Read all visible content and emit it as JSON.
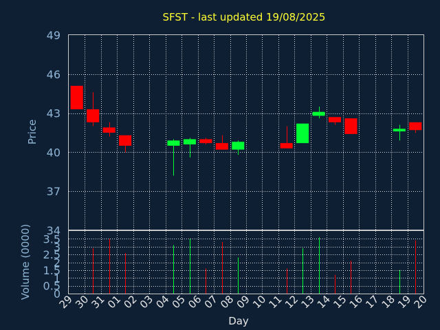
{
  "title": "SFST - last updated 19/08/2025",
  "colors": {
    "background": "#0e1f33",
    "up": "#00ff33",
    "down": "#ff0000",
    "title": "#ffff33",
    "axis_text": "#8fb4d4"
  },
  "chart_data": {
    "type": "candlestick",
    "title": "SFST - last updated 19/08/2025",
    "xlabel": "Day",
    "ylabel": "Price",
    "volume_label": "Volume (0000)",
    "days": [
      "29",
      "30",
      "31",
      "01",
      "02",
      "03",
      "04",
      "05",
      "06",
      "07",
      "08",
      "09",
      "10",
      "11",
      "12",
      "13",
      "14",
      "15",
      "16",
      "17",
      "18",
      "19",
      "20"
    ],
    "price_ylim": [
      34,
      49
    ],
    "price_ticks": [
      "49",
      "46",
      "43",
      "40",
      "37",
      "34"
    ],
    "volume_ylim": [
      0,
      4
    ],
    "volume_ticks": [
      "4",
      "3.5",
      "3",
      "2.5",
      "2",
      "1.5",
      "1",
      "0.5",
      "0"
    ],
    "grid": true,
    "candles": [
      {
        "day": "29",
        "open": 45.1,
        "close": 43.3,
        "high": 45.1,
        "low": 43.3,
        "volume": 0
      },
      {
        "day": "30",
        "open": 43.3,
        "close": 42.3,
        "high": 44.6,
        "low": 42.0,
        "volume": 2.9
      },
      {
        "day": "31",
        "open": 41.9,
        "close": 41.5,
        "high": 42.3,
        "low": 41.2,
        "volume": 3.5
      },
      {
        "day": "01",
        "open": 41.3,
        "close": 40.5,
        "high": 41.3,
        "low": 40.0,
        "volume": 2.6
      },
      {
        "day": "04",
        "open": 40.5,
        "close": 40.9,
        "high": 41.0,
        "low": 38.2,
        "volume": 3.1
      },
      {
        "day": "05",
        "open": 40.6,
        "close": 41.0,
        "high": 41.1,
        "low": 39.6,
        "volume": 3.5
      },
      {
        "day": "06",
        "open": 41.0,
        "close": 40.7,
        "high": 41.1,
        "low": 40.6,
        "volume": 1.6
      },
      {
        "day": "07",
        "open": 40.7,
        "close": 40.2,
        "high": 41.3,
        "low": 40.2,
        "volume": 3.3
      },
      {
        "day": "08",
        "open": 40.2,
        "close": 40.8,
        "high": 40.9,
        "low": 39.8,
        "volume": 2.3
      },
      {
        "day": "11",
        "open": 40.7,
        "close": 40.3,
        "high": 42.0,
        "low": 40.3,
        "volume": 1.6
      },
      {
        "day": "12",
        "open": 40.7,
        "close": 42.2,
        "high": 42.2,
        "low": 40.7,
        "volume": 2.9
      },
      {
        "day": "13",
        "open": 42.8,
        "close": 43.1,
        "high": 43.5,
        "low": 42.6,
        "volume": 3.6
      },
      {
        "day": "14",
        "open": 42.7,
        "close": 42.3,
        "high": 42.7,
        "low": 42.1,
        "volume": 1.2
      },
      {
        "day": "15",
        "open": 42.6,
        "close": 41.4,
        "high": 42.6,
        "low": 41.4,
        "volume": 2.1
      },
      {
        "day": "18",
        "open": 41.6,
        "close": 41.8,
        "high": 42.1,
        "low": 40.9,
        "volume": 1.5
      },
      {
        "day": "19",
        "open": 42.3,
        "close": 41.7,
        "high": 42.3,
        "low": 41.5,
        "volume": 3.4
      }
    ]
  }
}
